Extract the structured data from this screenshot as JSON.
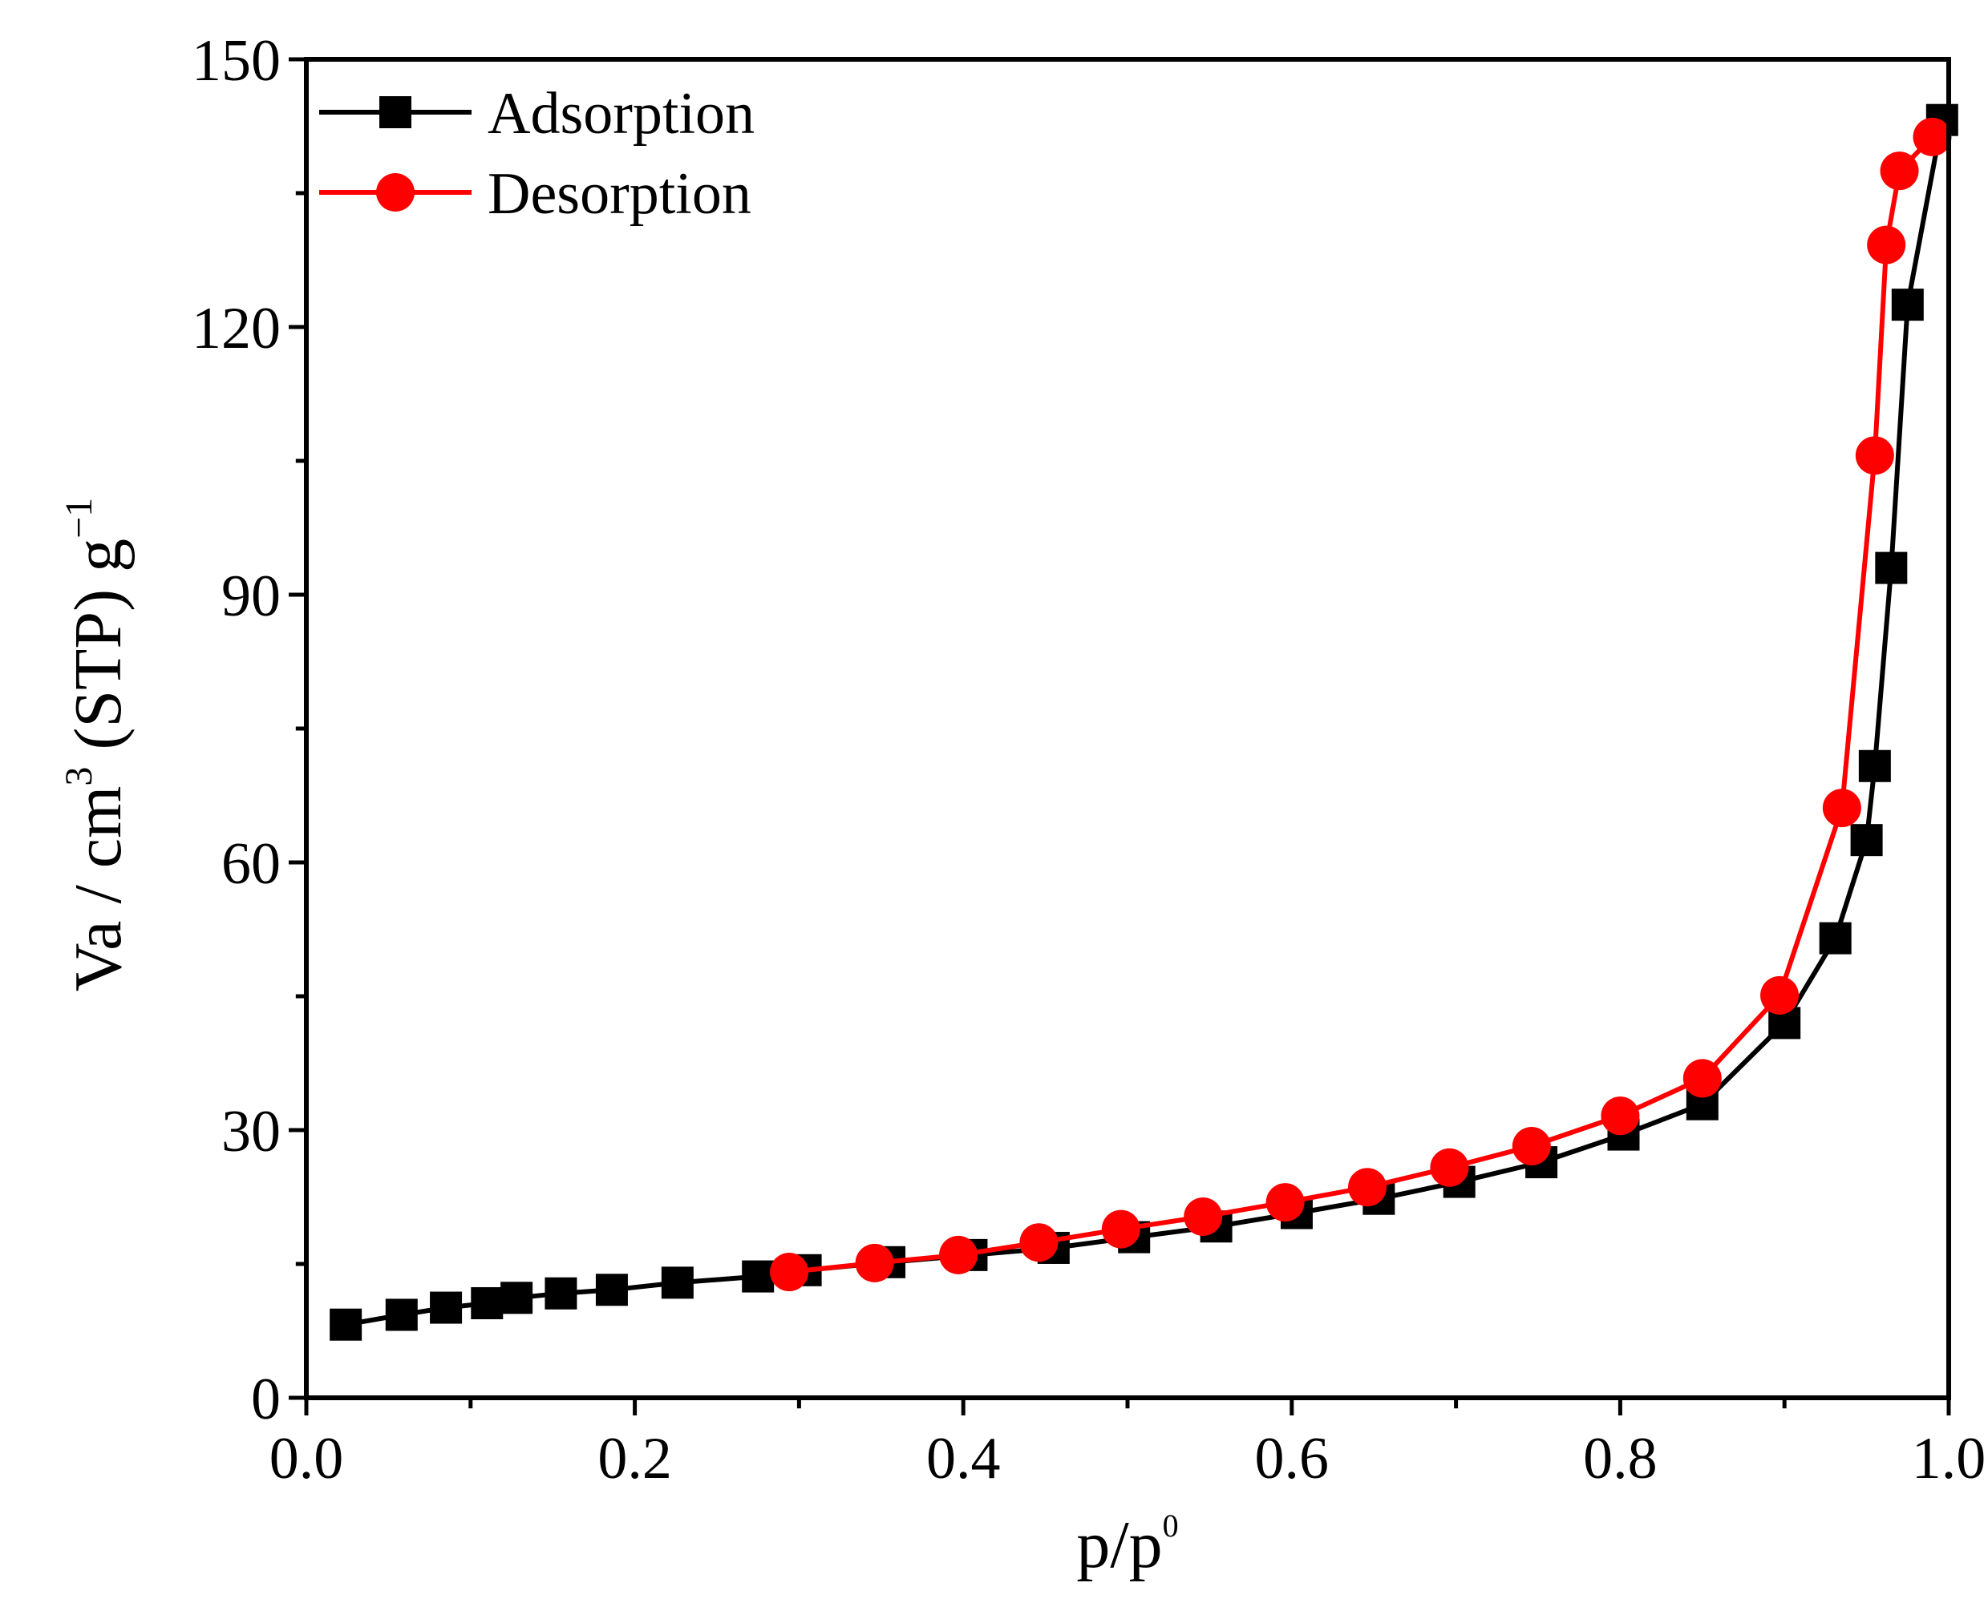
{
  "chart_data": {
    "type": "line",
    "xlabel_main": "p/p",
    "xlabel_sup": "0",
    "ylabel_main": "Va / cm",
    "ylabel_sup1": "3",
    "ylabel_mid": " (STP) g",
    "ylabel_sup2": "−1",
    "xlim": [
      0.0,
      1.0
    ],
    "ylim": [
      0,
      150
    ],
    "xticks": [
      "0.0",
      "0.2",
      "0.4",
      "0.6",
      "0.8",
      "1.0"
    ],
    "yticks": [
      "0",
      "30",
      "60",
      "90",
      "120",
      "150"
    ],
    "legend_position": "top-left",
    "series": [
      {
        "name": "Adsorption",
        "color": "#000000",
        "marker": "square",
        "x": [
          0.024,
          0.058,
          0.085,
          0.11,
          0.128,
          0.155,
          0.186,
          0.226,
          0.275,
          0.304,
          0.355,
          0.405,
          0.455,
          0.504,
          0.554,
          0.603,
          0.653,
          0.702,
          0.752,
          0.802,
          0.85,
          0.9,
          0.931,
          0.95,
          0.955,
          0.965,
          0.975,
          0.996
        ],
        "y": [
          8.2,
          9.3,
          10.1,
          10.6,
          11.2,
          11.7,
          12.1,
          12.9,
          13.6,
          14.3,
          15.2,
          16.0,
          16.8,
          18.0,
          19.2,
          20.7,
          22.3,
          24.2,
          26.4,
          29.5,
          32.9,
          42.0,
          51.5,
          62.5,
          70.8,
          93.0,
          122.5,
          143.2
        ]
      },
      {
        "name": "Desorption",
        "color": "#ff0000",
        "marker": "circle",
        "x": [
          0.294,
          0.346,
          0.397,
          0.446,
          0.496,
          0.546,
          0.596,
          0.646,
          0.696,
          0.746,
          0.8,
          0.85,
          0.897,
          0.935,
          0.955,
          0.962,
          0.97,
          0.99
        ],
        "y": [
          14.1,
          15.1,
          16.0,
          17.4,
          18.9,
          20.3,
          21.9,
          23.6,
          25.8,
          28.2,
          31.6,
          35.8,
          45.1,
          66.1,
          105.6,
          129.2,
          137.5,
          141.3
        ]
      }
    ]
  }
}
